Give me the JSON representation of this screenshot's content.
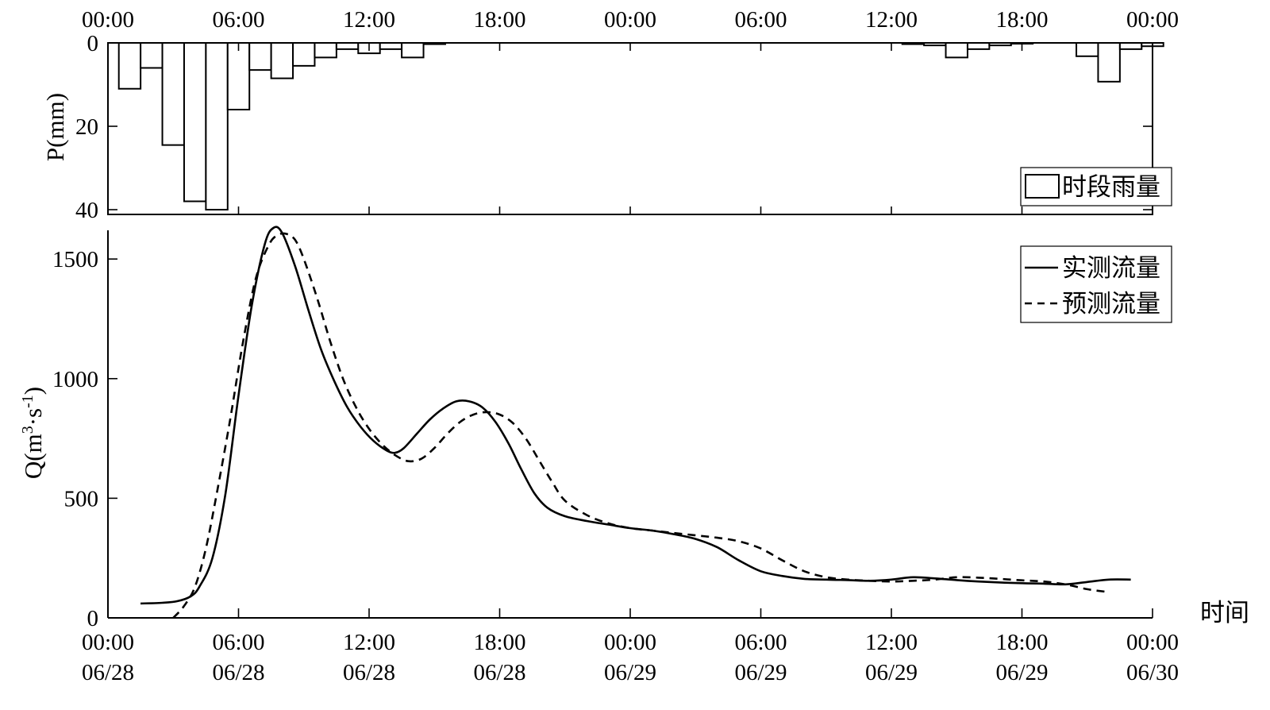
{
  "chart_data": [
    {
      "type": "bar",
      "ylabel": "P(mm)",
      "ylim": [
        0,
        40
      ],
      "y_inverted": true,
      "yticks": [
        "0",
        "20",
        "40"
      ],
      "xticks_top": [
        "00:00",
        "06:00",
        "12:00",
        "18:00",
        "00:00",
        "06:00",
        "12:00",
        "18:00",
        "00:00"
      ],
      "xlim_hours": [
        0,
        48
      ],
      "grid": false,
      "legend_position": "right",
      "series": [
        {
          "name": "时段雨量",
          "start_hour": 0.5,
          "bin_hours": 1,
          "values": [
            11,
            6,
            24.5,
            38,
            40,
            16,
            6.5,
            8.5,
            5.5,
            3.5,
            1.5,
            2.5,
            1.5,
            3.5,
            0.3,
            0,
            0,
            0,
            0,
            0,
            0,
            0,
            0,
            0,
            0,
            0,
            0,
            0,
            0,
            0,
            0,
            0,
            0,
            0,
            0,
            0,
            0.3,
            0.6,
            3.5,
            1.5,
            0.6,
            0.2,
            0,
            0,
            3.2,
            9.3,
            1.5,
            0.8
          ]
        }
      ]
    },
    {
      "type": "line",
      "ylabel": "Q(m",
      "ylabel_sup1": "3",
      "ylabel_mid": "·s",
      "ylabel_sup2": "-1",
      "ylabel_end": ")",
      "xlabel": "时间",
      "ylim": [
        0,
        1620
      ],
      "yticks": [
        "0",
        "500",
        "1000",
        "1500"
      ],
      "xlim_hours": [
        0,
        48
      ],
      "xticks_time": [
        "00:00",
        "06:00",
        "12:00",
        "18:00",
        "00:00",
        "06:00",
        "12:00",
        "18:00",
        "00:00"
      ],
      "xticks_date": [
        "06/28",
        "06/28",
        "06/28",
        "06/28",
        "06/29",
        "06/29",
        "06/29",
        "06/29",
        "06/30"
      ],
      "grid": false,
      "legend_position": "top-right",
      "series": [
        {
          "name": "实测流量",
          "style": "solid",
          "x": [
            1.5,
            2.5,
            3.2,
            3.8,
            4.2,
            4.8,
            5.4,
            6.0,
            6.6,
            7.2,
            7.6,
            8.0,
            8.6,
            9.2,
            9.8,
            10.4,
            11.0,
            11.6,
            12.2,
            12.8,
            13.2,
            13.6,
            14.2,
            14.8,
            15.4,
            16.0,
            16.6,
            17.2,
            17.8,
            18.4,
            19.0,
            19.6,
            20.2,
            21.0,
            22.0,
            23.0,
            24.0,
            25.0,
            26.0,
            27.0,
            28.0,
            29.0,
            30.0,
            31.0,
            32.0,
            33.0,
            34.0,
            35.0,
            36.0,
            37.0,
            38.0,
            39.0,
            40.0,
            41.0,
            42.0,
            43.0,
            44.0,
            45.0,
            46.0,
            47.0
          ],
          "y": [
            60,
            63,
            70,
            90,
            130,
            250,
            520,
            930,
            1300,
            1560,
            1630,
            1610,
            1470,
            1290,
            1120,
            990,
            880,
            800,
            740,
            700,
            690,
            710,
            770,
            830,
            875,
            905,
            905,
            880,
            820,
            730,
            620,
            520,
            460,
            425,
            405,
            390,
            375,
            365,
            350,
            330,
            295,
            240,
            195,
            175,
            163,
            160,
            158,
            155,
            160,
            170,
            165,
            158,
            152,
            148,
            145,
            143,
            140,
            150,
            160,
            160
          ]
        },
        {
          "name": "预测流量",
          "style": "dashed",
          "x": [
            3.0,
            3.5,
            4.0,
            4.5,
            5.0,
            5.6,
            6.2,
            6.8,
            7.4,
            7.8,
            8.2,
            8.6,
            9.0,
            9.6,
            10.2,
            10.8,
            11.4,
            12.0,
            12.6,
            13.2,
            13.8,
            14.4,
            15.0,
            15.6,
            16.2,
            16.8,
            17.4,
            18.0,
            18.6,
            19.2,
            19.8,
            20.4,
            21.0,
            22.0,
            23.0,
            24.0,
            25.0,
            26.0,
            27.0,
            28.0,
            29.0,
            30.0,
            31.0,
            32.0,
            33.0,
            34.0,
            35.0,
            36.0,
            37.0,
            38.0,
            39.0,
            40.0,
            41.0,
            42.0,
            43.0,
            44.0,
            45.0,
            45.8
          ],
          "y": [
            0,
            50,
            130,
            290,
            520,
            820,
            1150,
            1420,
            1560,
            1600,
            1605,
            1580,
            1500,
            1340,
            1160,
            1000,
            880,
            790,
            725,
            680,
            655,
            665,
            710,
            770,
            820,
            850,
            860,
            850,
            815,
            750,
            660,
            570,
            490,
            430,
            395,
            375,
            365,
            355,
            345,
            335,
            320,
            290,
            240,
            195,
            170,
            160,
            155,
            152,
            155,
            160,
            170,
            168,
            163,
            157,
            152,
            140,
            120,
            110
          ]
        }
      ]
    }
  ]
}
